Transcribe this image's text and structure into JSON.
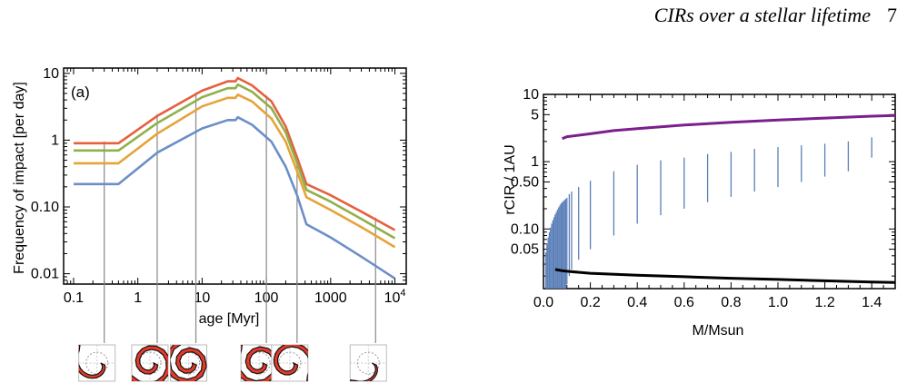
{
  "header": {
    "running_title": "CIRs over a stellar lifetime",
    "page_number": "7"
  },
  "chart_data": [
    {
      "type": "line",
      "panel_label": "(a)",
      "xlabel": "age [Myr]",
      "ylabel": "Frequency of impact [per day]",
      "xscale": "log",
      "yscale": "log",
      "xlim": [
        0.07,
        15000
      ],
      "ylim": [
        0.007,
        12
      ],
      "xticks": [
        {
          "v": 0.1,
          "label": "0.1"
        },
        {
          "v": 1,
          "label": "1"
        },
        {
          "v": 10,
          "label": "10"
        },
        {
          "v": 100,
          "label": "100"
        },
        {
          "v": 1000,
          "label": "1000"
        },
        {
          "v": 10000,
          "label": "10",
          "sup": "4"
        }
      ],
      "yticks": [
        {
          "v": 10,
          "label": "10"
        },
        {
          "v": 1,
          "label": "1"
        },
        {
          "v": 0.1,
          "label": "0.10"
        },
        {
          "v": 0.01,
          "label": "0.01"
        }
      ],
      "series": [
        {
          "color": "#e5613e",
          "points": [
            [
              0.1,
              0.9
            ],
            [
              0.5,
              0.9
            ],
            [
              2,
              2.3
            ],
            [
              10,
              5.5
            ],
            [
              25,
              7.6
            ],
            [
              33,
              7.6
            ],
            [
              36,
              8.5
            ],
            [
              60,
              6.6
            ],
            [
              120,
              3.8
            ],
            [
              200,
              1.6
            ],
            [
              300,
              0.55
            ],
            [
              420,
              0.22
            ],
            [
              1000,
              0.15
            ],
            [
              3000,
              0.085
            ],
            [
              10000,
              0.045
            ]
          ]
        },
        {
          "color": "#8fb04a",
          "points": [
            [
              0.1,
              0.7
            ],
            [
              0.5,
              0.7
            ],
            [
              2,
              1.8
            ],
            [
              10,
              4.4
            ],
            [
              25,
              6.0
            ],
            [
              33,
              6.0
            ],
            [
              36,
              6.8
            ],
            [
              60,
              5.3
            ],
            [
              120,
              3.0
            ],
            [
              200,
              1.3
            ],
            [
              300,
              0.45
            ],
            [
              420,
              0.18
            ],
            [
              1000,
              0.12
            ],
            [
              3000,
              0.066
            ],
            [
              10000,
              0.034
            ]
          ]
        },
        {
          "color": "#e6a33a",
          "points": [
            [
              0.1,
              0.45
            ],
            [
              0.5,
              0.45
            ],
            [
              2,
              1.25
            ],
            [
              10,
              3.2
            ],
            [
              25,
              4.3
            ],
            [
              33,
              4.3
            ],
            [
              36,
              4.8
            ],
            [
              60,
              3.8
            ],
            [
              120,
              2.1
            ],
            [
              200,
              0.95
            ],
            [
              300,
              0.34
            ],
            [
              420,
              0.14
            ],
            [
              1000,
              0.09
            ],
            [
              3000,
              0.05
            ],
            [
              10000,
              0.025
            ]
          ]
        },
        {
          "color": "#6b8fc7",
          "points": [
            [
              0.1,
              0.22
            ],
            [
              0.5,
              0.22
            ],
            [
              2,
              0.65
            ],
            [
              10,
              1.5
            ],
            [
              25,
              2.0
            ],
            [
              33,
              2.0
            ],
            [
              36,
              2.2
            ],
            [
              60,
              1.7
            ],
            [
              120,
              0.95
            ],
            [
              200,
              0.4
            ],
            [
              300,
              0.15
            ],
            [
              420,
              0.055
            ],
            [
              1000,
              0.035
            ],
            [
              3000,
              0.018
            ],
            [
              10000,
              0.0085
            ]
          ]
        }
      ],
      "marker_ages": [
        0.3,
        2,
        8,
        100,
        300,
        5000
      ]
    },
    {
      "type": "line",
      "xlabel": "M/Msun",
      "ylabel": "rCIR / 1AU",
      "yscale": "log",
      "xlim": [
        0,
        1.5
      ],
      "ylim": [
        0.013,
        10
      ],
      "xticks": [
        {
          "v": 0.0,
          "label": "0.0"
        },
        {
          "v": 0.2,
          "label": "0.2"
        },
        {
          "v": 0.4,
          "label": "0.4"
        },
        {
          "v": 0.6,
          "label": "0.6"
        },
        {
          "v": 0.8,
          "label": "0.8"
        },
        {
          "v": 1.0,
          "label": "1.0"
        },
        {
          "v": 1.2,
          "label": "1.2"
        },
        {
          "v": 1.4,
          "label": "1.4"
        }
      ],
      "yticks": [
        {
          "v": 10,
          "label": "10"
        },
        {
          "v": 5,
          "label": "5"
        },
        {
          "v": 1,
          "label": "1"
        },
        {
          "v": 0.5,
          "label": "0.50"
        },
        {
          "v": 0.1,
          "label": "0.10"
        },
        {
          "v": 0.05,
          "label": "0.05"
        }
      ],
      "upper_curve": {
        "color": "#7b1f8c",
        "points": [
          [
            0.08,
            2.2
          ],
          [
            0.1,
            2.35
          ],
          [
            0.2,
            2.6
          ],
          [
            0.3,
            2.9
          ],
          [
            0.4,
            3.1
          ],
          [
            0.6,
            3.5
          ],
          [
            0.8,
            3.85
          ],
          [
            1.0,
            4.15
          ],
          [
            1.2,
            4.45
          ],
          [
            1.4,
            4.75
          ],
          [
            1.5,
            4.85
          ]
        ]
      },
      "lower_curve": {
        "color": "#000000",
        "points": [
          [
            0.05,
            0.025
          ],
          [
            0.08,
            0.024
          ],
          [
            0.1,
            0.0235
          ],
          [
            0.2,
            0.022
          ],
          [
            0.4,
            0.0205
          ],
          [
            0.6,
            0.0195
          ],
          [
            0.8,
            0.0185
          ],
          [
            1.0,
            0.0178
          ],
          [
            1.2,
            0.017
          ],
          [
            1.4,
            0.0163
          ],
          [
            1.5,
            0.016
          ]
        ]
      },
      "range_bars": {
        "color": "#5b7fb8",
        "bars": [
          [
            0.01,
            0.013,
            0.045
          ],
          [
            0.015,
            0.013,
            0.06
          ],
          [
            0.02,
            0.013,
            0.075
          ],
          [
            0.025,
            0.013,
            0.09
          ],
          [
            0.03,
            0.013,
            0.105
          ],
          [
            0.035,
            0.013,
            0.12
          ],
          [
            0.04,
            0.013,
            0.135
          ],
          [
            0.045,
            0.013,
            0.15
          ],
          [
            0.05,
            0.013,
            0.165
          ],
          [
            0.055,
            0.013,
            0.18
          ],
          [
            0.06,
            0.013,
            0.195
          ],
          [
            0.065,
            0.013,
            0.21
          ],
          [
            0.07,
            0.013,
            0.225
          ],
          [
            0.075,
            0.013,
            0.24
          ],
          [
            0.08,
            0.013,
            0.25
          ],
          [
            0.085,
            0.013,
            0.26
          ],
          [
            0.09,
            0.013,
            0.27
          ],
          [
            0.095,
            0.013,
            0.28
          ],
          [
            0.1,
            0.015,
            0.29
          ],
          [
            0.11,
            0.02,
            0.33
          ],
          [
            0.12,
            0.025,
            0.36
          ],
          [
            0.15,
            0.035,
            0.42
          ],
          [
            0.2,
            0.05,
            0.52
          ],
          [
            0.3,
            0.08,
            0.72
          ],
          [
            0.4,
            0.12,
            0.9
          ],
          [
            0.5,
            0.16,
            1.05
          ],
          [
            0.6,
            0.2,
            1.15
          ],
          [
            0.7,
            0.25,
            1.3
          ],
          [
            0.8,
            0.3,
            1.4
          ],
          [
            0.9,
            0.36,
            1.55
          ],
          [
            1.0,
            0.42,
            1.65
          ],
          [
            1.1,
            0.5,
            1.75
          ],
          [
            1.2,
            0.6,
            1.85
          ],
          [
            1.3,
            0.72,
            2.0
          ],
          [
            1.4,
            1.15,
            2.3
          ]
        ]
      }
    }
  ]
}
